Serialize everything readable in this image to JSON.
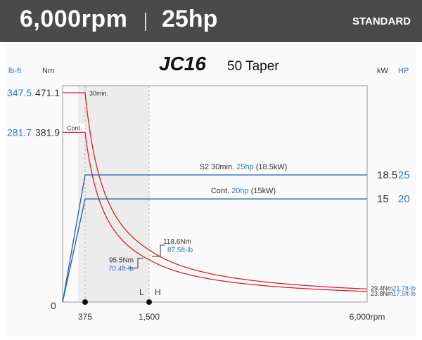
{
  "header": {
    "rpm": "6,000rpm",
    "hp": "25hp",
    "badge": "STANDARD"
  },
  "chart_data": {
    "type": "line",
    "title_logo": "JC16",
    "title": "50 Taper",
    "left_axis_units": {
      "torque_lbft": "lb-ft",
      "torque_nm": "Nm"
    },
    "right_axis_units": {
      "power_kw": "kW",
      "power_hp": "HP"
    },
    "y_left_ticks": [
      {
        "lbft": "347.5",
        "nm": "471.1"
      },
      {
        "lbft": "281.7",
        "nm": "381.9"
      },
      {
        "nm": "0"
      }
    ],
    "y_right_ticks": [
      {
        "kw": "18.5",
        "hp": "25"
      },
      {
        "kw": "15",
        "hp": "20"
      }
    ],
    "x_ticks": [
      "375",
      "1,500",
      "6,000rpm"
    ],
    "x_range": [
      0,
      6000
    ],
    "torque_range_nm": [
      0,
      471.1
    ],
    "range_labels": {
      "low": "L",
      "high": "H"
    },
    "series": [
      {
        "name": "30min.",
        "kind": "torque",
        "color": "#e0202a",
        "x": [
          0,
          375,
          6000
        ],
        "nm": [
          471.1,
          471.1,
          29.4
        ]
      },
      {
        "name": "Cont.",
        "kind": "torque",
        "color": "#e0202a",
        "x": [
          0,
          375,
          6000
        ],
        "nm": [
          381.9,
          381.9,
          23.8
        ]
      },
      {
        "name": "S2 30min.",
        "kind": "power",
        "color": "#1f5fa8",
        "x": [
          0,
          375,
          6000
        ],
        "kw": [
          0,
          18.5,
          18.5
        ]
      },
      {
        "name": "Cont.",
        "kind": "power",
        "color": "#1f5fa8",
        "x": [
          0,
          375,
          6000
        ],
        "kw": [
          0,
          15,
          15
        ]
      }
    ],
    "annotations": {
      "s2_line": {
        "prefix": "S2 30min. ",
        "hp": "25hp",
        "kw": " (18.5kW)"
      },
      "cont_line": {
        "prefix": "Cont. ",
        "hp": "20hp",
        "kw": " (15kW)"
      },
      "at_1500_30min": {
        "nm": "118.6Nm",
        "lbft": "87.5ft-lb"
      },
      "at_1500_cont": {
        "nm": "95.5Nm",
        "lbft": "70.4ft-lb"
      },
      "end_30min": {
        "nm": "29.4Nm",
        "lbft": "21.7ft-lb"
      },
      "end_cont": {
        "nm": "23.8Nm",
        "lbft": "17.5ft-lb"
      }
    },
    "colors": {
      "torque": "#e0202a",
      "power": "#1f5fa8",
      "accent_text": "#3a78c2",
      "shade": "#ececec"
    }
  }
}
